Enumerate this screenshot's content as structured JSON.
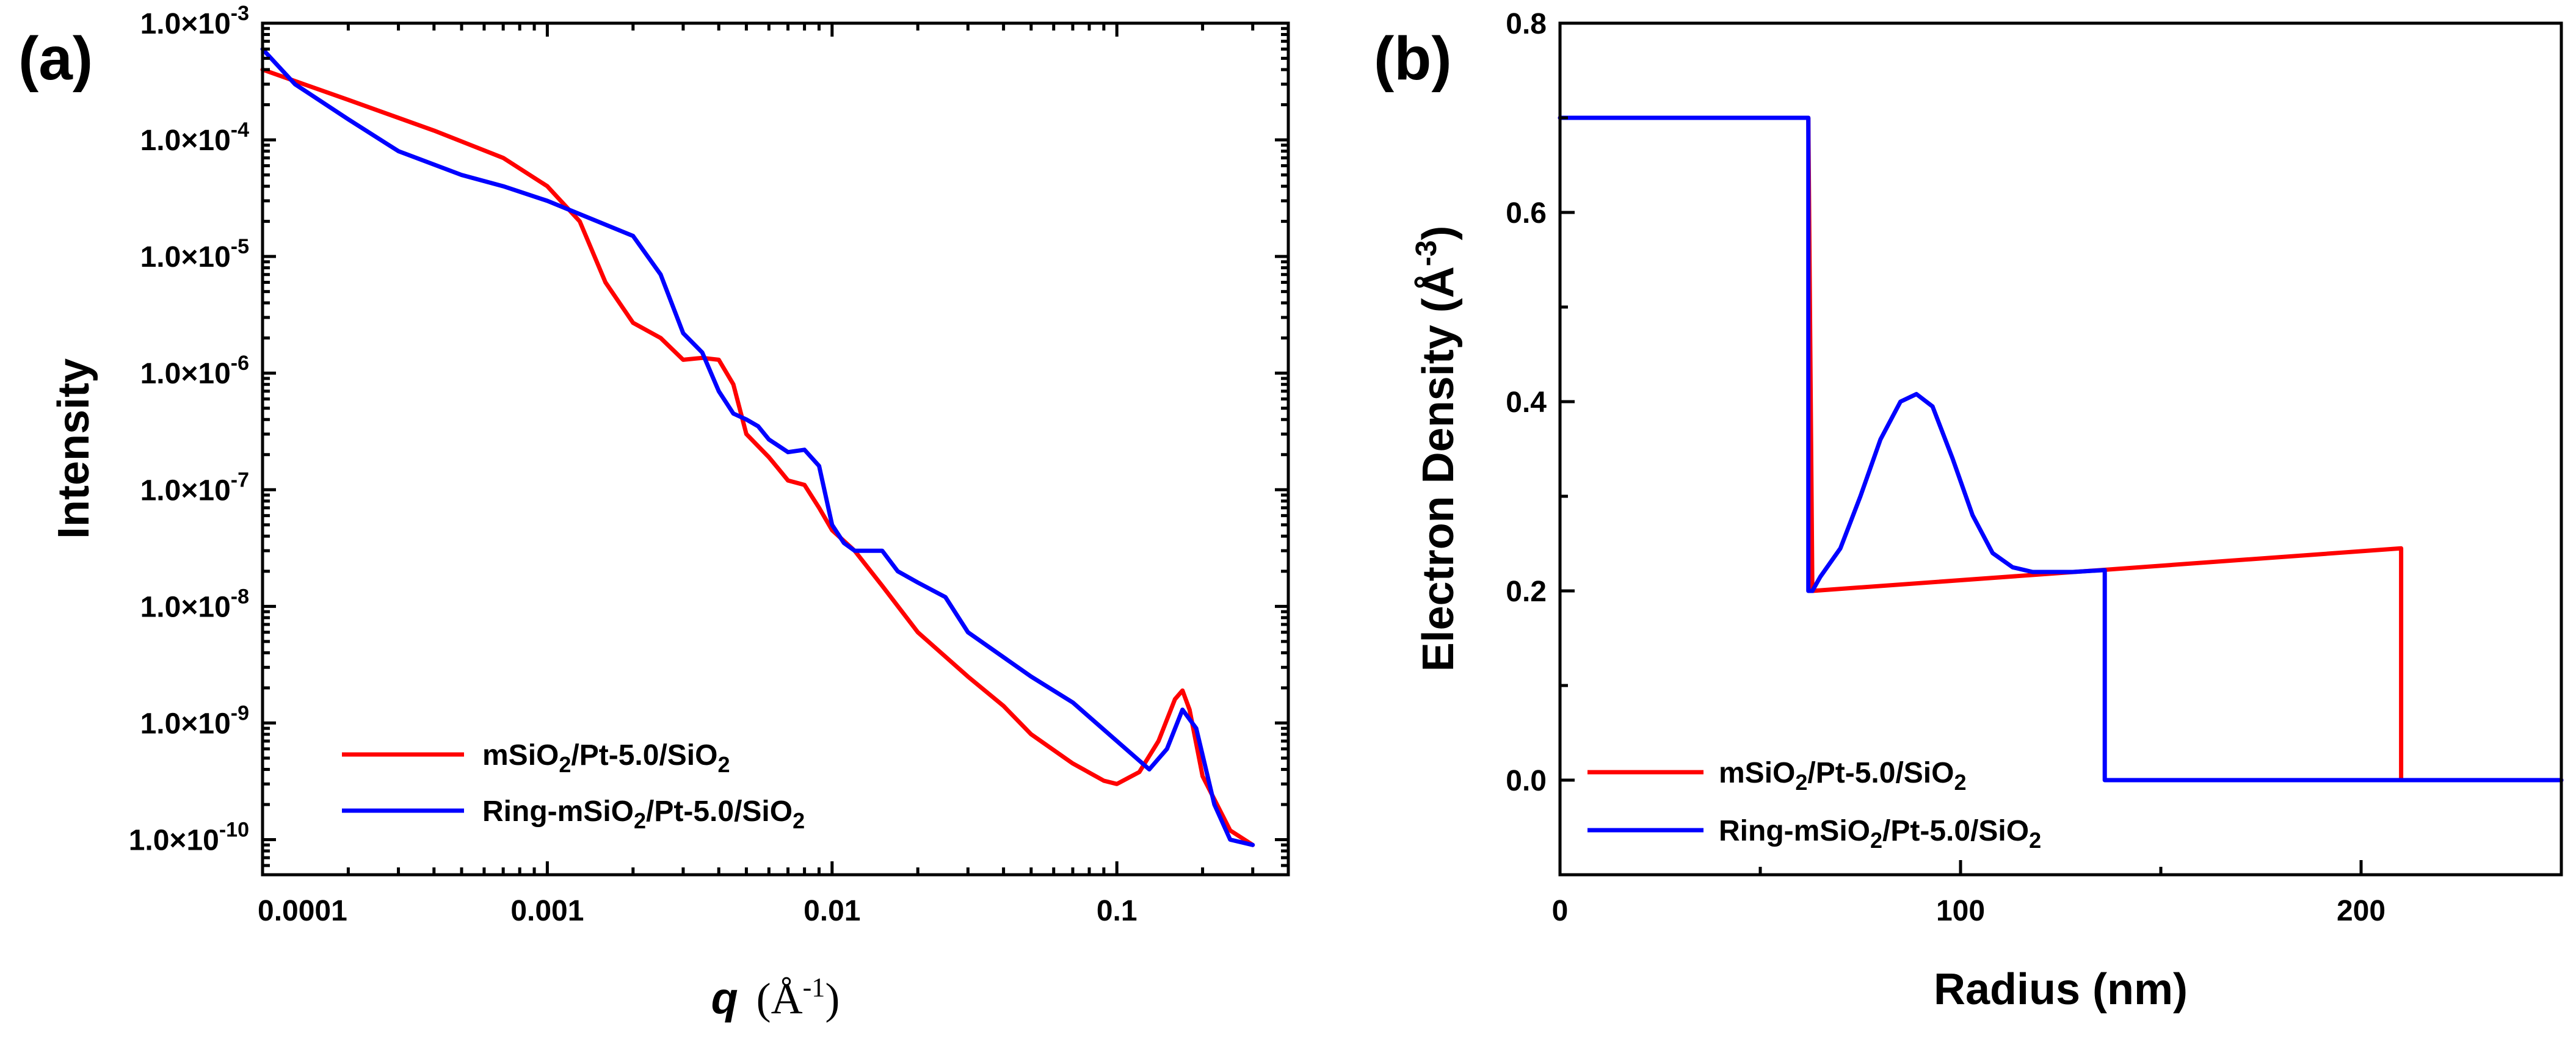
{
  "panels": {
    "a": {
      "label": "(a)"
    },
    "b": {
      "label": "(b)"
    }
  },
  "chart_data": [
    {
      "id": "a",
      "type": "line",
      "xscale": "log",
      "yscale": "log",
      "xlim": [
        0.0001,
        0.4
      ],
      "ylim": [
        5e-11,
        0.001
      ],
      "xlabel": "q",
      "xlabel_unit": "(Å",
      "xlabel_unit_sup": "-1",
      "xlabel_unit_close": ")",
      "ylabel": "Intensity",
      "xticks": [
        0.0001,
        0.001,
        0.01,
        0.1
      ],
      "xtick_labels": [
        "0.0001",
        "0.001",
        "0.01",
        "0.1"
      ],
      "yticks": [
        1e-10,
        1e-09,
        1e-08,
        1e-07,
        1e-06,
        1e-05,
        0.0001,
        0.001
      ],
      "ytick_labels": [
        "1.0×10-10",
        "1.0×10-9",
        "1.0×10-8",
        "1.0×10-7",
        "1.0×10-6",
        "1.0×10-5",
        "1.0×10-4",
        "1.0×10-3"
      ],
      "ytick_base": [
        "1.0×10",
        "1.0×10",
        "1.0×10",
        "1.0×10",
        "1.0×10",
        "1.0×10",
        "1.0×10",
        "1.0×10"
      ],
      "ytick_exp": [
        "-10",
        "-9",
        "-8",
        "-7",
        "-6",
        "-5",
        "-4",
        "-3"
      ],
      "legend_position": "bottom-left",
      "series": [
        {
          "name": "mSiO2/Pt-5.0/SiO2",
          "legend_parts": [
            "mSiO",
            "2",
            "/Pt-5.0/SiO",
            "2"
          ],
          "color": "#ff0000",
          "x": [
            0.0001,
            0.0002,
            0.0004,
            0.0007,
            0.001,
            0.0013,
            0.0016,
            0.002,
            0.0025,
            0.003,
            0.0035,
            0.004,
            0.0045,
            0.005,
            0.006,
            0.0065,
            0.007,
            0.008,
            0.009,
            0.01,
            0.012,
            0.015,
            0.02,
            0.03,
            0.04,
            0.05,
            0.07,
            0.09,
            0.1,
            0.12,
            0.14,
            0.16,
            0.17,
            0.18,
            0.2,
            0.25,
            0.3
          ],
          "y": [
            0.0004,
            0.00022,
            0.00012,
            7e-05,
            4e-05,
            2e-05,
            6e-06,
            2.7e-06,
            2e-06,
            1.3e-06,
            1.35e-06,
            1.3e-06,
            8e-07,
            3e-07,
            1.9e-07,
            1.5e-07,
            1.2e-07,
            1.1e-07,
            7e-08,
            4.5e-08,
            3e-08,
            1.5e-08,
            6e-09,
            2.5e-09,
            1.4e-09,
            8e-10,
            4.5e-10,
            3.2e-10,
            3e-10,
            3.8e-10,
            7e-10,
            1.6e-09,
            1.9e-09,
            1.3e-09,
            3.5e-10,
            1.2e-10,
            9e-11
          ]
        },
        {
          "name": "Ring-mSiO2/Pt-5.0/SiO2",
          "legend_parts": [
            "Ring-mSiO",
            "2",
            "/Pt-5.0/SiO",
            "2"
          ],
          "color": "#0000ff",
          "x": [
            0.0001,
            0.00013,
            0.0002,
            0.0003,
            0.0005,
            0.0007,
            0.001,
            0.0015,
            0.002,
            0.0025,
            0.003,
            0.0035,
            0.004,
            0.0045,
            0.005,
            0.0055,
            0.006,
            0.007,
            0.008,
            0.009,
            0.01,
            0.011,
            0.012,
            0.015,
            0.017,
            0.02,
            0.025,
            0.03,
            0.05,
            0.07,
            0.1,
            0.13,
            0.15,
            0.17,
            0.19,
            0.22,
            0.25,
            0.3
          ],
          "y": [
            0.0006,
            0.0003,
            0.00015,
            8e-05,
            5e-05,
            4e-05,
            3e-05,
            2e-05,
            1.5e-05,
            7e-06,
            2.2e-06,
            1.5e-06,
            7e-07,
            4.5e-07,
            4e-07,
            3.5e-07,
            2.7e-07,
            2.1e-07,
            2.2e-07,
            1.6e-07,
            5e-08,
            3.5e-08,
            3e-08,
            3e-08,
            2e-08,
            1.6e-08,
            1.2e-08,
            6e-09,
            2.5e-09,
            1.5e-09,
            7e-10,
            4e-10,
            6e-10,
            1.3e-09,
            9e-10,
            2e-10,
            1e-10,
            9e-11
          ]
        }
      ]
    },
    {
      "id": "b",
      "type": "line",
      "xlim": [
        0,
        250
      ],
      "ylim": [
        -0.1,
        0.8
      ],
      "xlabel": "Radius (nm)",
      "ylabel": "Electron Density (Å",
      "ylabel_sup": "-3",
      "ylabel_close": ")",
      "xticks": [
        0,
        100,
        200
      ],
      "xtick_labels": [
        "0",
        "100",
        "200"
      ],
      "xminor": [
        50,
        150,
        250
      ],
      "yticks": [
        0.0,
        0.2,
        0.4,
        0.6,
        0.8
      ],
      "ytick_labels": [
        "0.0",
        "0.2",
        "0.4",
        "0.6",
        "0.8"
      ],
      "legend_position": "bottom-left",
      "series": [
        {
          "name": "mSiO2/Pt-5.0/SiO2",
          "legend_parts": [
            "mSiO",
            "2",
            "/Pt-5.0/SiO",
            "2"
          ],
          "color": "#ff0000",
          "x": [
            0,
            62,
            62,
            63,
            210,
            210,
            250
          ],
          "y": [
            0.7,
            0.7,
            0.7,
            0.2,
            0.245,
            0.0,
            0.0
          ]
        },
        {
          "name": "Ring-mSiO2/Pt-5.0/SiO2",
          "legend_parts": [
            "Ring-mSiO",
            "2",
            "/Pt-5.0/SiO",
            "2"
          ],
          "color": "#0000ff",
          "x": [
            0,
            62,
            62,
            63,
            65,
            70,
            75,
            80,
            85,
            89,
            93,
            98,
            103,
            108,
            113,
            118,
            123,
            128,
            136,
            136,
            250
          ],
          "y": [
            0.7,
            0.7,
            0.2,
            0.2,
            0.215,
            0.245,
            0.3,
            0.36,
            0.4,
            0.408,
            0.395,
            0.34,
            0.28,
            0.24,
            0.225,
            0.22,
            0.22,
            0.22,
            0.222,
            0.0,
            0.0
          ]
        }
      ]
    }
  ]
}
